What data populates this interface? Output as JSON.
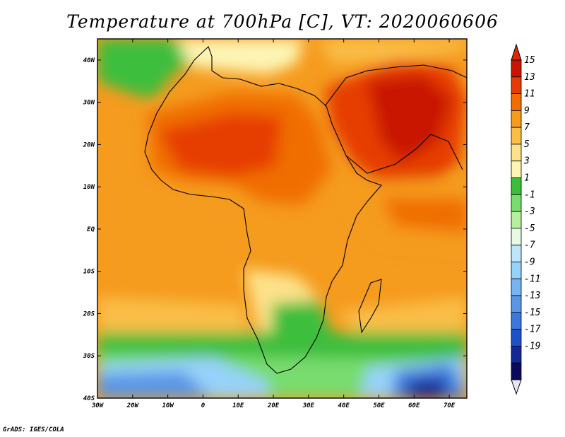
{
  "title": "Temperature at 700hPa [C], VT: 2020060606",
  "credit": "GrADS: IGES/COLA",
  "map": {
    "lon_ticks": [
      "30W",
      "20W",
      "10W",
      "0",
      "10E",
      "20E",
      "30E",
      "40E",
      "50E",
      "60E",
      "70E"
    ],
    "lat_ticks": [
      "40N",
      "30N",
      "20N",
      "10N",
      "EQ",
      "10S",
      "20S",
      "30S",
      "40S"
    ],
    "lon_range": [
      -30,
      75
    ],
    "lat_range": [
      -40,
      45
    ]
  },
  "colorbar": {
    "labels": [
      "15",
      "13",
      "11",
      "9",
      "7",
      "5",
      "3",
      "1",
      "-1",
      "-3",
      "-5",
      "-7",
      "-9",
      "-11",
      "-13",
      "-15",
      "-17",
      "-19"
    ],
    "colors": [
      "#c81400",
      "#e63c00",
      "#f06e00",
      "#f59b1e",
      "#fabe46",
      "#fde28a",
      "#fdf5b4",
      "#3cbe3c",
      "#78dc6e",
      "#b4f0a0",
      "#e6fae6",
      "#bee6fa",
      "#96d2fa",
      "#78b4f0",
      "#5a96e6",
      "#3c78dc",
      "#1e50c8",
      "#142896",
      "#0a0a5a"
    ],
    "top_color": "#dc2800",
    "bottom_color": "#e6e6fa"
  }
}
